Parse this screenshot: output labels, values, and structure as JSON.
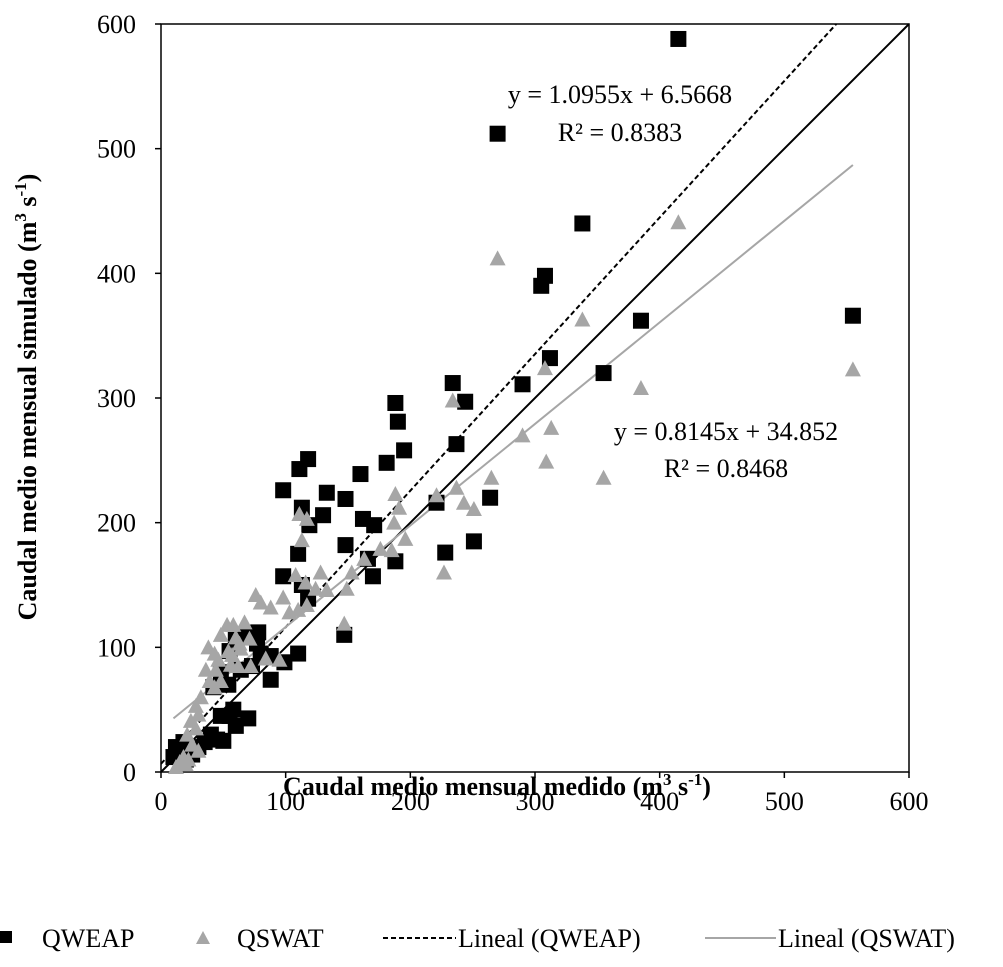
{
  "chart_data": {
    "type": "scatter",
    "xlabel": "Caudal medio mensual medido (m3 s-1)",
    "xlabel_parts": {
      "pre": "Caudal medio mensual medido (m",
      "sup1": "3",
      "mid": " s",
      "sup2": "-1",
      "post": ")"
    },
    "ylabel": "Caudal medio mensual simulado (m3 s-1)",
    "ylabel_parts": {
      "pre": "Caudal medio mensual simulado (m",
      "sup1": "3",
      "mid": " s",
      "sup2": "-1",
      "post": ")"
    },
    "xlim": [
      0,
      600
    ],
    "ylim": [
      0,
      600
    ],
    "xticks": [
      "0",
      "100",
      "200",
      "300",
      "400",
      "500",
      "600"
    ],
    "yticks": [
      "0",
      "100",
      "200",
      "300",
      "400",
      "500",
      "600"
    ],
    "grid": false,
    "legend_position": "bottom",
    "colors": {
      "qweap": "#000000",
      "qswat": "#a6a6a6",
      "one_to_one": "#000000"
    },
    "series": [
      {
        "name": "QWEAP",
        "marker": "square",
        "points": [
          [
            415,
            588
          ],
          [
            270,
            512
          ],
          [
            338,
            440
          ],
          [
            308,
            398
          ],
          [
            305,
            390
          ],
          [
            385,
            362
          ],
          [
            555,
            366
          ],
          [
            312,
            332
          ],
          [
            355,
            320
          ],
          [
            290,
            311
          ],
          [
            234,
            312
          ],
          [
            244,
            297
          ],
          [
            188,
            296
          ],
          [
            190,
            281
          ],
          [
            237,
            263
          ],
          [
            195,
            258
          ],
          [
            160,
            239
          ],
          [
            181,
            248
          ],
          [
            118,
            251
          ],
          [
            111,
            243
          ],
          [
            98,
            226
          ],
          [
            133,
            224
          ],
          [
            264,
            220
          ],
          [
            148,
            219
          ],
          [
            221,
            216
          ],
          [
            130,
            206
          ],
          [
            113,
            212
          ],
          [
            162,
            203
          ],
          [
            119,
            198
          ],
          [
            171,
            198
          ],
          [
            110,
            175
          ],
          [
            228,
            176
          ],
          [
            251,
            185
          ],
          [
            148,
            182
          ],
          [
            166,
            171
          ],
          [
            188,
            169
          ],
          [
            170,
            157
          ],
          [
            98,
            157
          ],
          [
            113,
            150
          ],
          [
            118,
            139
          ],
          [
            147,
            110
          ],
          [
            110,
            95
          ],
          [
            88,
            93
          ],
          [
            99,
            88
          ],
          [
            88,
            74
          ],
          [
            73,
            85
          ],
          [
            80,
            95
          ],
          [
            64,
            82
          ],
          [
            55,
            97
          ],
          [
            48,
            80
          ],
          [
            60,
            106
          ],
          [
            77,
            103
          ],
          [
            68,
            110
          ],
          [
            78,
            112
          ],
          [
            54,
            70
          ],
          [
            42,
            68
          ],
          [
            48,
            45
          ],
          [
            58,
            50
          ],
          [
            55,
            45
          ],
          [
            70,
            43
          ],
          [
            60,
            37
          ],
          [
            45,
            26
          ],
          [
            50,
            25
          ],
          [
            40,
            30
          ],
          [
            35,
            24
          ],
          [
            30,
            20
          ],
          [
            25,
            14
          ],
          [
            20,
            10
          ],
          [
            18,
            24
          ],
          [
            14,
            18
          ],
          [
            12,
            20
          ],
          [
            10,
            12
          ]
        ]
      },
      {
        "name": "QSWAT",
        "marker": "triangle",
        "points": [
          [
            415,
            441
          ],
          [
            270,
            412
          ],
          [
            338,
            363
          ],
          [
            555,
            323
          ],
          [
            308,
            324
          ],
          [
            385,
            308
          ],
          [
            234,
            298
          ],
          [
            313,
            276
          ],
          [
            290,
            270
          ],
          [
            309,
            249
          ],
          [
            355,
            236
          ],
          [
            265,
            236
          ],
          [
            237,
            228
          ],
          [
            221,
            222
          ],
          [
            243,
            216
          ],
          [
            188,
            223
          ],
          [
            251,
            211
          ],
          [
            191,
            212
          ],
          [
            111,
            207
          ],
          [
            117,
            203
          ],
          [
            187,
            200
          ],
          [
            113,
            186
          ],
          [
            196,
            187
          ],
          [
            227,
            160
          ],
          [
            163,
            171
          ],
          [
            176,
            179
          ],
          [
            185,
            178
          ],
          [
            128,
            160
          ],
          [
            153,
            160
          ],
          [
            108,
            158
          ],
          [
            116,
            152
          ],
          [
            124,
            147
          ],
          [
            133,
            146
          ],
          [
            149,
            147
          ],
          [
            98,
            140
          ],
          [
            103,
            128
          ],
          [
            117,
            134
          ],
          [
            110,
            130
          ],
          [
            88,
            132
          ],
          [
            76,
            142
          ],
          [
            80,
            136
          ],
          [
            67,
            120
          ],
          [
            58,
            118
          ],
          [
            53,
            118
          ],
          [
            48,
            110
          ],
          [
            60,
            108
          ],
          [
            63,
            103
          ],
          [
            71,
            107
          ],
          [
            38,
            100
          ],
          [
            43,
            95
          ],
          [
            46,
            90
          ],
          [
            54,
            97
          ],
          [
            64,
            99
          ],
          [
            57,
            94
          ],
          [
            95,
            90
          ],
          [
            84,
            91
          ],
          [
            72,
            85
          ],
          [
            62,
            85
          ],
          [
            56,
            86
          ],
          [
            44,
            82
          ],
          [
            36,
            82
          ],
          [
            48,
            73
          ],
          [
            39,
            73
          ],
          [
            43,
            68
          ],
          [
            32,
            60
          ],
          [
            28,
            53
          ],
          [
            30,
            46
          ],
          [
            24,
            41
          ],
          [
            28,
            35
          ],
          [
            21,
            30
          ],
          [
            25,
            22
          ],
          [
            30,
            17
          ],
          [
            18,
            12
          ],
          [
            15,
            8
          ],
          [
            12,
            4
          ],
          [
            20,
            6
          ],
          [
            22,
            10
          ],
          [
            147,
            119
          ]
        ]
      }
    ],
    "trendlines": [
      {
        "name": "Lineal (QWEAP)",
        "series": "QWEAP",
        "slope": 1.0955,
        "intercept": 6.5668,
        "x_range": [
          0,
          600
        ],
        "style": "dashed",
        "equation": "y = 1.0955x + 6.5668",
        "r2_label": "R² = 0.8383"
      },
      {
        "name": "Lineal (QSWAT)",
        "series": "QSWAT",
        "slope": 0.8145,
        "intercept": 34.852,
        "x_range": [
          10,
          555
        ],
        "style": "solid",
        "equation": "y = 0.8145x + 34.852",
        "r2_label": "R² = 0.8468"
      }
    ],
    "reference_line": {
      "type": "1:1",
      "from": [
        0,
        0
      ],
      "to": [
        600,
        600
      ]
    },
    "legend": [
      "QWEAP",
      "QSWAT",
      "Lineal (QWEAP)",
      "Lineal (QSWAT)"
    ]
  }
}
